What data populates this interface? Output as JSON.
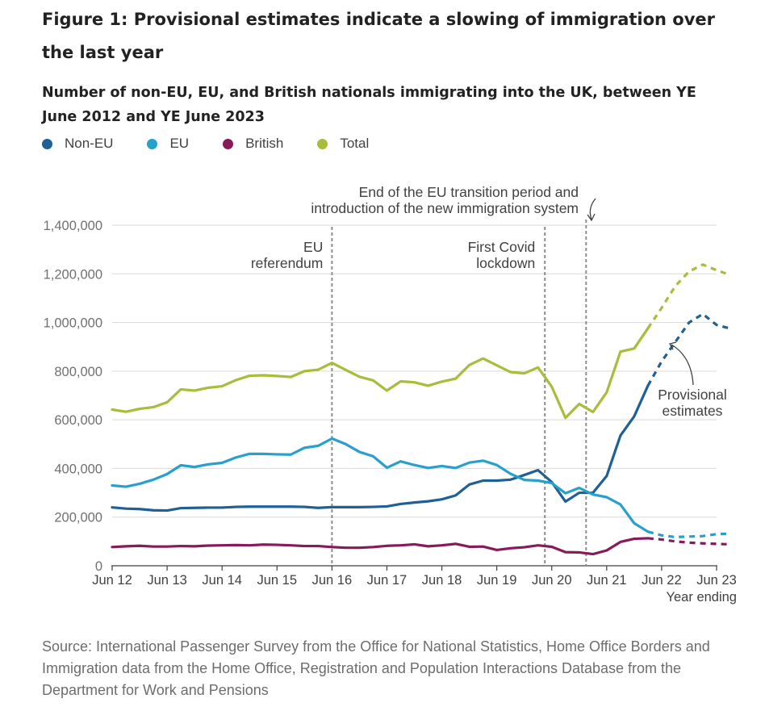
{
  "title": "Figure 1: Provisional estimates indicate a slowing of immigration over the last year",
  "subtitle": "Number of non-EU, EU, and British nationals immigrating into the UK, between YE June 2012 and YE June 2023",
  "source": "Source: International Passenger Survey from the Office for National Statistics, Home Office Borders and Immigration data from the Home Office, Registration and Population Interactions Database from the Department for Work and Pensions",
  "chart_data": {
    "type": "line",
    "xlabel": "Year ending",
    "ylabel": "",
    "ylim": [
      0,
      1400000
    ],
    "xlim": [
      0,
      44
    ],
    "grid": true,
    "legend_position": "top-left",
    "y_ticks": [
      0,
      200000,
      400000,
      600000,
      800000,
      1000000,
      1200000,
      1400000
    ],
    "y_tick_labels": [
      "0",
      "200,000",
      "400,000",
      "600,000",
      "800,000",
      "1,000,000",
      "1,200,000",
      "1,400,000"
    ],
    "x_ticks": [
      0,
      4,
      8,
      12,
      16,
      20,
      24,
      28,
      32,
      36,
      40,
      44
    ],
    "x_tick_labels": [
      "Jun 12",
      "Jun 13",
      "Jun 14",
      "Jun 15",
      "Jun 16",
      "Jun 17",
      "Jun 18",
      "Jun 19",
      "Jun 20",
      "Jun 21",
      "Jun 22",
      "Jun 23"
    ],
    "x_period_unit": "quarter",
    "series": [
      {
        "name": "Non-EU",
        "color": "#206095",
        "values": [
          240000,
          235000,
          233000,
          228000,
          227000,
          237000,
          238000,
          239000,
          239000,
          242000,
          243000,
          243000,
          243000,
          243000,
          242000,
          238000,
          241000,
          241000,
          241000,
          242000,
          244000,
          254000,
          260000,
          265000,
          273000,
          289000,
          334000,
          350000,
          350000,
          354000,
          373000,
          393000,
          344000,
          264000,
          300000,
          300000,
          369000,
          535000,
          614000,
          740000
        ],
        "provisional_values": [
          null,
          null,
          null,
          null,
          null,
          null,
          null,
          null,
          null,
          null,
          null,
          null,
          null,
          null,
          null,
          null,
          null,
          null,
          null,
          null,
          null,
          null,
          null,
          null,
          null,
          null,
          null,
          null,
          null,
          null,
          null,
          null,
          null,
          null,
          null,
          null,
          null,
          null,
          null,
          740000,
          840000,
          920000,
          1000000,
          1035000,
          990000,
          975000
        ]
      },
      {
        "name": "EU",
        "color": "#27a0cc",
        "values": [
          330000,
          325000,
          337000,
          354000,
          377000,
          413000,
          406000,
          417000,
          423000,
          445000,
          460000,
          460000,
          458000,
          457000,
          485000,
          493000,
          523000,
          500000,
          468000,
          450000,
          403000,
          429000,
          414000,
          402000,
          410000,
          402000,
          424000,
          432000,
          414000,
          378000,
          353000,
          350000,
          340000,
          298000,
          320000,
          293000,
          282000,
          252000,
          175000,
          140000
        ],
        "provisional_values": [
          null,
          null,
          null,
          null,
          null,
          null,
          null,
          null,
          null,
          null,
          null,
          null,
          null,
          null,
          null,
          null,
          null,
          null,
          null,
          null,
          null,
          null,
          null,
          null,
          null,
          null,
          null,
          null,
          null,
          null,
          null,
          null,
          null,
          null,
          null,
          null,
          null,
          null,
          null,
          140000,
          125000,
          118000,
          120000,
          122000,
          130000,
          132000
        ]
      },
      {
        "name": "British",
        "color": "#871a5b",
        "values": [
          77000,
          80000,
          82000,
          79000,
          79000,
          81000,
          80000,
          83000,
          84000,
          85000,
          84000,
          87000,
          86000,
          84000,
          81000,
          81000,
          77000,
          74000,
          74000,
          77000,
          82000,
          84000,
          88000,
          80000,
          84000,
          90000,
          78000,
          79000,
          65000,
          72000,
          76000,
          84000,
          78000,
          56000,
          55000,
          48000,
          63000,
          98000,
          111000,
          113000
        ],
        "provisional_values": [
          null,
          null,
          null,
          null,
          null,
          null,
          null,
          null,
          null,
          null,
          null,
          null,
          null,
          null,
          null,
          null,
          null,
          null,
          null,
          null,
          null,
          null,
          null,
          null,
          null,
          null,
          null,
          null,
          null,
          null,
          null,
          null,
          null,
          null,
          null,
          null,
          null,
          null,
          null,
          113000,
          108000,
          100000,
          95000,
          92000,
          90000,
          88000
        ]
      },
      {
        "name": "Total",
        "color": "#a8bd3a",
        "values": [
          642000,
          633000,
          645000,
          652000,
          672000,
          725000,
          720000,
          732000,
          738000,
          763000,
          781000,
          783000,
          780000,
          776000,
          800000,
          806000,
          834000,
          805000,
          777000,
          762000,
          720000,
          758000,
          754000,
          740000,
          757000,
          769000,
          825000,
          852000,
          824000,
          796000,
          791000,
          815000,
          736000,
          608000,
          665000,
          632000,
          713000,
          880000,
          893000,
          976000
        ],
        "provisional_values": [
          null,
          null,
          null,
          null,
          null,
          null,
          null,
          null,
          null,
          null,
          null,
          null,
          null,
          null,
          null,
          null,
          null,
          null,
          null,
          null,
          null,
          null,
          null,
          null,
          null,
          null,
          null,
          null,
          null,
          null,
          null,
          null,
          null,
          null,
          null,
          null,
          null,
          null,
          null,
          976000,
          1060000,
          1150000,
          1210000,
          1238000,
          1215000,
          1195000
        ]
      }
    ],
    "reference_lines": [
      {
        "x": 16,
        "label_lines": [
          "EU",
          "referendum"
        ]
      },
      {
        "x": 31.5,
        "label_lines": [
          "First Covid",
          "lockdown"
        ]
      },
      {
        "x": 34.5,
        "label_lines": [
          "End of the EU transition period and",
          "introduction of the new immigration system"
        ]
      }
    ],
    "annotations": [
      {
        "text_lines": [
          "Provisional",
          "estimates"
        ],
        "points_to_x": 41.2,
        "points_to_y": 930000
      }
    ]
  }
}
